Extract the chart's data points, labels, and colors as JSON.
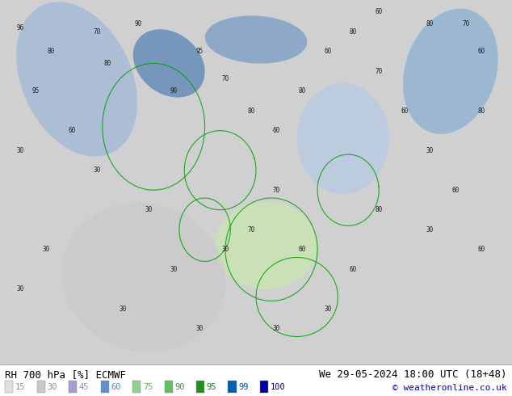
{
  "title_left": "RH 700 hPa [%] ECMWF",
  "title_right": "We 29-05-2024 18:00 UTC (18+48)",
  "copyright": "© weatheronline.co.uk",
  "legend_values": [
    15,
    30,
    45,
    60,
    75,
    90,
    95,
    99,
    100
  ],
  "legend_colors": [
    "#e0e0e0",
    "#c8c8c8",
    "#a0a0d0",
    "#6090d0",
    "#90d090",
    "#60c060",
    "#209020",
    "#0060b0",
    "#0000a0"
  ],
  "legend_label_colors": [
    "#909090",
    "#909090",
    "#9090b0",
    "#5090c0",
    "#60b060",
    "#409040",
    "#207820",
    "#0050a0",
    "#000080"
  ],
  "bg_color": "#d0d0d0",
  "text_color_left": "#000000",
  "text_color_right": "#000000",
  "copyright_color": "#0000cc",
  "fig_width": 6.34,
  "fig_height": 4.9,
  "dpi": 100
}
